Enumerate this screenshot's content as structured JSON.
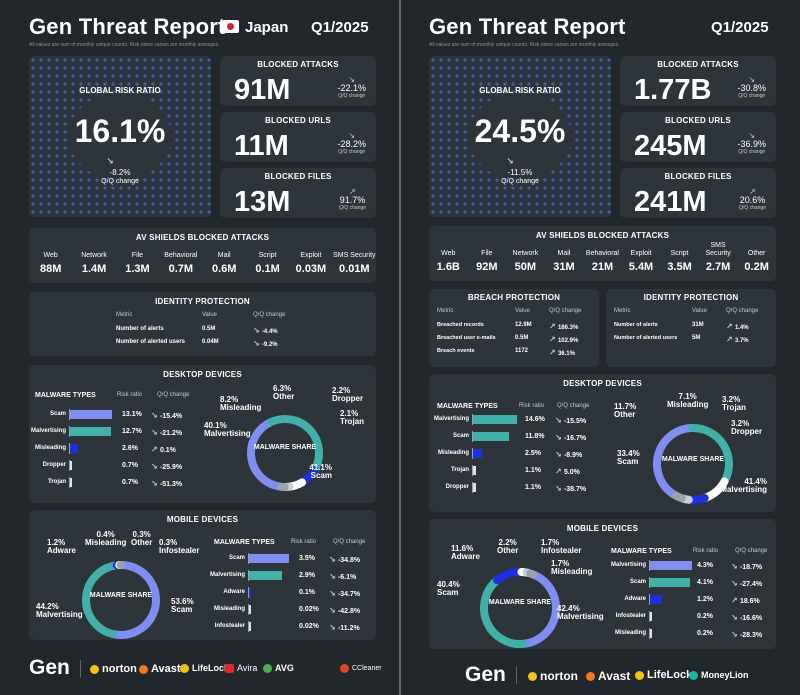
{
  "left": {
    "title": "Gen Threat Report",
    "country": "Japan",
    "quarter": "Q1/2025",
    "note": "All values are sum of monthly unique counts. Risk ratios values are monthly averages.",
    "global": {
      "label": "GLOBAL RISK RATIO",
      "value": "16.1%",
      "change": "-8.2%",
      "change_label": "Q/Q change"
    },
    "stats": [
      {
        "title": "BLOCKED ATTACKS",
        "value": "91M",
        "change": "-22.1%",
        "sub": "Q/Q change"
      },
      {
        "title": "BLOCKED URLS",
        "value": "11M",
        "change": "-28.2%",
        "sub": "Q/Q change"
      },
      {
        "title": "BLOCKED FILES",
        "value": "13M",
        "change": "91.7%",
        "sub": "Q/Q change"
      }
    ],
    "av": {
      "title": "AV SHIELDS BLOCKED ATTACKS",
      "items": [
        {
          "label": "Web",
          "value": "88M"
        },
        {
          "label": "Network",
          "value": "1.4M"
        },
        {
          "label": "File",
          "value": "1.3M"
        },
        {
          "label": "Behavioral",
          "value": "0.7M"
        },
        {
          "label": "Mail",
          "value": "0.6M"
        },
        {
          "label": "Script",
          "value": "0.1M"
        },
        {
          "label": "Exploit",
          "value": "0.03M"
        },
        {
          "label": "SMS Security",
          "value": "0.01M"
        }
      ]
    },
    "identity": {
      "title": "IDENTITY PROTECTION",
      "headers": [
        "Metric",
        "Value",
        "Q/Q change"
      ],
      "rows": [
        {
          "metric": "Number of alerts",
          "value": "0.5M",
          "change": "-4.4%"
        },
        {
          "metric": "Number of alerted users",
          "value": "0.04M",
          "change": "-9.2%"
        }
      ]
    },
    "desktop": {
      "title": "DESKTOP DEVICES",
      "headers": [
        "MALWARE TYPES",
        "Risk ratio",
        "Q/Q change"
      ],
      "share_label": "MALWARE SHARE",
      "rows": [
        {
          "name": "Scam",
          "ratio": "13.1%",
          "change": "-15.4%",
          "frac": 1.0,
          "color": "#7f8ef0"
        },
        {
          "name": "Malvertising",
          "ratio": "12.7%",
          "change": "-21.2%",
          "frac": 0.97,
          "color": "#41b0a8"
        },
        {
          "name": "Misleading",
          "ratio": "2.6%",
          "change": "0.1%",
          "frac": 0.2,
          "color": "#1f30e0"
        },
        {
          "name": "Dropper",
          "ratio": "0.7%",
          "change": "-25.9%",
          "frac": 0.05,
          "color": "#dfe3e8"
        },
        {
          "name": "Trojan",
          "ratio": "0.7%",
          "change": "-51.3%",
          "frac": 0.05,
          "color": "#dfe3e8"
        }
      ],
      "share": [
        {
          "pct": "41.1%",
          "name": "Scam",
          "v": 41.1,
          "color": "#7f8ef0"
        },
        {
          "pct": "40.1%",
          "name": "Malvertising",
          "v": 40.1,
          "color": "#41b0a8"
        },
        {
          "pct": "8.2%",
          "name": "Misleading",
          "v": 8.2,
          "color": "#1f30e0"
        },
        {
          "pct": "6.3%",
          "name": "Other",
          "v": 6.3,
          "color": "#ffffff"
        },
        {
          "pct": "2.2%",
          "name": "Dropper",
          "v": 2.2,
          "color": "#c9cfd6"
        },
        {
          "pct": "2.1%",
          "name": "Trojan",
          "v": 2.1,
          "color": "#9aa2ab"
        }
      ]
    },
    "mobile": {
      "title": "MOBILE DEVICES",
      "headers": [
        "MALWARE TYPES",
        "Risk ratio",
        "Q/Q change"
      ],
      "share_label": "MALWARE SHARE",
      "rows": [
        {
          "name": "Scam",
          "ratio": "3.5%",
          "change": "-34.8%",
          "frac": 1.0,
          "color": "#7f8ef0"
        },
        {
          "name": "Malvertising",
          "ratio": "2.9%",
          "change": "-6.1%",
          "frac": 0.83,
          "color": "#41b0a8"
        },
        {
          "name": "Adware",
          "ratio": "0.1%",
          "change": "-34.7%",
          "frac": 0.04,
          "color": "#1f30e0"
        },
        {
          "name": "Misleading",
          "ratio": "0.02%",
          "change": "-42.8%",
          "frac": 0.02,
          "color": "#dfe3e8"
        },
        {
          "name": "Infostealer",
          "ratio": "0.02%",
          "change": "-11.2%",
          "frac": 0.02,
          "color": "#dfe3e8"
        }
      ],
      "share": [
        {
          "pct": "53.6%",
          "name": "Scam",
          "v": 53.6,
          "color": "#7f8ef0"
        },
        {
          "pct": "44.2%",
          "name": "Malvertising",
          "v": 44.2,
          "color": "#41b0a8"
        },
        {
          "pct": "1.2%",
          "name": "Adware",
          "v": 1.2,
          "color": "#1f30e0"
        },
        {
          "pct": "0.4%",
          "name": "Misleading",
          "v": 0.4,
          "color": "#dfe3e8"
        },
        {
          "pct": "0.3%",
          "name": "Other",
          "v": 0.3,
          "color": "#ffffff"
        },
        {
          "pct": "0.3%",
          "name": "Infostealer",
          "v": 0.3,
          "color": "#9aa2ab"
        }
      ]
    },
    "brands": [
      "Gen",
      "norton",
      "Avast",
      "LifeLock",
      "Avira",
      "AVG",
      "CCleaner"
    ]
  },
  "right": {
    "title": "Gen Threat Report",
    "quarter": "Q1/2025",
    "note": "All values are sum of monthly unique counts. Risk ratios values are monthly averages.",
    "global": {
      "label": "GLOBAL RISK RATIO",
      "value": "24.5%",
      "change": "-11.5%",
      "change_label": "Q/Q change"
    },
    "stats": [
      {
        "title": "BLOCKED ATTACKS",
        "value": "1.77B",
        "change": "-30.8%",
        "sub": "Q/Q change"
      },
      {
        "title": "BLOCKED URLS",
        "value": "245M",
        "change": "-36.9%",
        "sub": "Q/Q change"
      },
      {
        "title": "BLOCKED FILES",
        "value": "241M",
        "change": "20.6%",
        "sub": "Q/Q change"
      }
    ],
    "av": {
      "title": "AV SHIELDS BLOCKED ATTACKS",
      "items": [
        {
          "label": "Web",
          "value": "1.6B"
        },
        {
          "label": "File",
          "value": "92M"
        },
        {
          "label": "Network",
          "value": "50M"
        },
        {
          "label": "Mail",
          "value": "31M"
        },
        {
          "label": "Behavioral",
          "value": "21M"
        },
        {
          "label": "Exploit",
          "value": "5.4M"
        },
        {
          "label": "Script",
          "value": "3.5M"
        },
        {
          "label": "SMS Security",
          "value": "2.7M"
        },
        {
          "label": "Other",
          "value": "0.2M"
        }
      ]
    },
    "breach": {
      "title": "BREACH PROTECTION",
      "headers": [
        "Metric",
        "Value",
        "Q/Q change"
      ],
      "rows": [
        {
          "metric": "Breached records",
          "value": "12.9M",
          "change": "186.3%"
        },
        {
          "metric": "Breached user e-mails",
          "value": "0.5M",
          "change": "102.9%"
        },
        {
          "metric": "Breach events",
          "value": "1172",
          "change": "36.1%"
        }
      ]
    },
    "identity": {
      "title": "IDENTITY PROTECTION",
      "headers": [
        "Metric",
        "Value",
        "Q/Q change"
      ],
      "rows": [
        {
          "metric": "Number of alerts",
          "value": "31M",
          "change": "1.4%"
        },
        {
          "metric": "Number of alerted users",
          "value": "5M",
          "change": "3.7%"
        }
      ]
    },
    "desktop": {
      "title": "DESKTOP DEVICES",
      "headers": [
        "MALWARE TYPES",
        "Risk ratio",
        "Q/Q change"
      ],
      "share_label": "MALWARE SHARE",
      "rows": [
        {
          "name": "Malvertising",
          "ratio": "14.6%",
          "change": "-15.5%",
          "frac": 1.0,
          "color": "#41b0a8"
        },
        {
          "name": "Scam",
          "ratio": "11.8%",
          "change": "-16.7%",
          "frac": 0.81,
          "color": "#41b0a8"
        },
        {
          "name": "Misleading",
          "ratio": "2.5%",
          "change": "-8.9%",
          "frac": 0.2,
          "color": "#1f30e0"
        },
        {
          "name": "Trojan",
          "ratio": "1.1%",
          "change": "5.0%",
          "frac": 0.07,
          "color": "#dfe3e8"
        },
        {
          "name": "Dropper",
          "ratio": "1.1%",
          "change": "-38.7%",
          "frac": 0.07,
          "color": "#dfe3e8"
        }
      ],
      "share": [
        {
          "pct": "41.4%",
          "name": "Malvertising",
          "v": 41.4,
          "color": "#7f8ef0"
        },
        {
          "pct": "33.4%",
          "name": "Scam",
          "v": 33.4,
          "color": "#41b0a8"
        },
        {
          "pct": "11.7%",
          "name": "Other",
          "v": 11.7,
          "color": "#ffffff"
        },
        {
          "pct": "7.1%",
          "name": "Misleading",
          "v": 7.1,
          "color": "#1f30e0"
        },
        {
          "pct": "3.2%",
          "name": "Trojan",
          "v": 3.2,
          "color": "#c9cfd6"
        },
        {
          "pct": "3.2%",
          "name": "Dropper",
          "v": 3.2,
          "color": "#9aa2ab"
        }
      ]
    },
    "mobile": {
      "title": "MOBILE DEVICES",
      "headers": [
        "MALWARE TYPES",
        "Risk ratio",
        "Q/Q change"
      ],
      "share_label": "MALWARE SHARE",
      "rows": [
        {
          "name": "Malvertising",
          "ratio": "4.3%",
          "change": "-18.7%",
          "frac": 1.0,
          "color": "#7f8ef0"
        },
        {
          "name": "Scam",
          "ratio": "4.1%",
          "change": "-27.4%",
          "frac": 0.95,
          "color": "#41b0a8"
        },
        {
          "name": "Adware",
          "ratio": "1.2%",
          "change": "18.6%",
          "frac": 0.28,
          "color": "#1f30e0"
        },
        {
          "name": "Infostealer",
          "ratio": "0.2%",
          "change": "-16.6%",
          "frac": 0.03,
          "color": "#dfe3e8"
        },
        {
          "name": "Misleading",
          "ratio": "0.2%",
          "change": "-28.3%",
          "frac": 0.03,
          "color": "#dfe3e8"
        }
      ],
      "share": [
        {
          "pct": "42.4%",
          "name": "Malvertising",
          "v": 42.4,
          "color": "#7f8ef0"
        },
        {
          "pct": "40.4%",
          "name": "Scam",
          "v": 40.4,
          "color": "#41b0a8"
        },
        {
          "pct": "11.6%",
          "name": "Adware",
          "v": 11.6,
          "color": "#1f30e0"
        },
        {
          "pct": "2.2%",
          "name": "Other",
          "v": 2.2,
          "color": "#ffffff"
        },
        {
          "pct": "1.7%",
          "name": "Infostealer",
          "v": 1.7,
          "color": "#c9cfd6"
        },
        {
          "pct": "1.7%",
          "name": "Misleading",
          "v": 1.7,
          "color": "#9aa2ab"
        }
      ]
    },
    "brands": [
      "Gen",
      "norton",
      "Avast",
      "LifeLock",
      "MoneyLion"
    ]
  }
}
